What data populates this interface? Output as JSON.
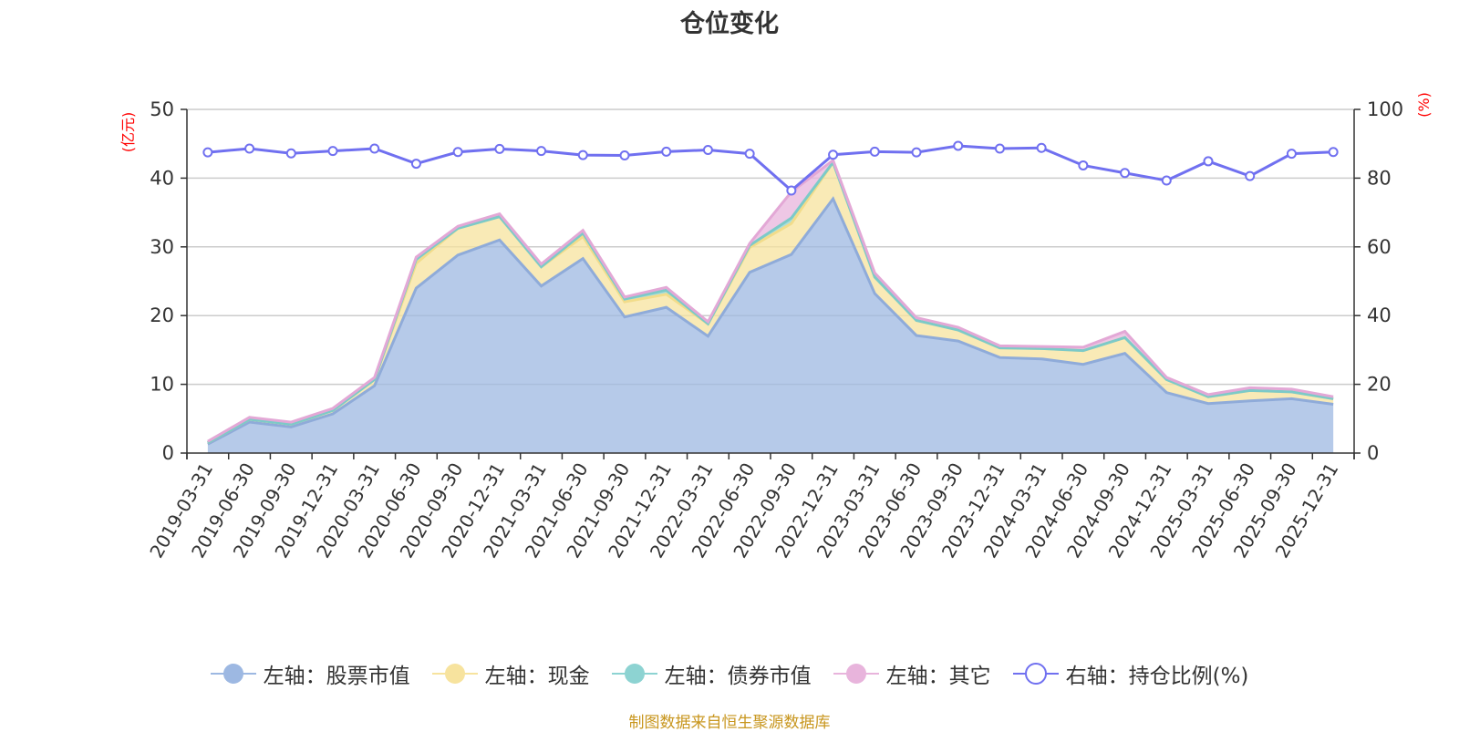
{
  "title": "仓位变化",
  "source": "制图数据来自恒生聚源数据库",
  "colors": {
    "stock": "#9db8e2",
    "cash": "#f7e39e",
    "bond": "#8dd3d2",
    "other": "#e8b4dc",
    "ratio": "#7070f0",
    "unit_label": "#ff0000"
  },
  "legend": [
    {
      "label": "左轴：股票市值",
      "icon": "filled-circle-icon",
      "color": "#9db8e2"
    },
    {
      "label": "左轴：现金",
      "icon": "filled-circle-icon",
      "color": "#f7e39e"
    },
    {
      "label": "左轴：债券市值",
      "icon": "filled-circle-icon",
      "color": "#8dd3d2"
    },
    {
      "label": "左轴：其它",
      "icon": "filled-circle-icon",
      "color": "#e8b4dc"
    },
    {
      "label": "右轴：持仓比例(%)",
      "icon": "hollow-circle-icon",
      "color": "#7070f0"
    }
  ],
  "chart_data": {
    "type": "area",
    "title": "仓位变化",
    "left_axis": {
      "unit": "(亿元)",
      "ylim": [
        0,
        50
      ],
      "ticks": [
        0,
        10,
        20,
        30,
        40,
        50
      ]
    },
    "right_axis": {
      "unit": "(%)",
      "ylim": [
        0,
        100
      ],
      "ticks": [
        0,
        20,
        40,
        60,
        80,
        100
      ]
    },
    "grid": true,
    "legend_position": "bottom",
    "categories": [
      "2019-03-31",
      "2019-06-30",
      "2019-09-30",
      "2019-12-31",
      "2020-03-31",
      "2020-06-30",
      "2020-09-30",
      "2020-12-31",
      "2021-03-31",
      "2021-06-30",
      "2021-09-30",
      "2021-12-31",
      "2022-03-31",
      "2022-06-30",
      "2022-09-30",
      "2022-12-31",
      "2023-03-31",
      "2023-06-30",
      "2023-09-30",
      "2023-12-31",
      "2024-03-31",
      "2024-06-30",
      "2024-09-30",
      "2024-12-31",
      "2025-03-31",
      "2025-06-30",
      "2025-09-30",
      "2025-12-31"
    ],
    "series": [
      {
        "name": "左轴：股票市值",
        "axis": "left",
        "stacked": true,
        "values": [
          1.3,
          4.5,
          3.8,
          5.7,
          9.8,
          24.0,
          28.8,
          31.0,
          24.3,
          28.3,
          19.8,
          21.2,
          17.0,
          26.3,
          28.9,
          37.0,
          23.2,
          17.1,
          16.3,
          13.9,
          13.7,
          12.9,
          14.5,
          8.8,
          7.2,
          7.6,
          7.9,
          7.1
        ]
      },
      {
        "name": "左轴：现金",
        "axis": "left",
        "stacked": true,
        "values": [
          0.2,
          0.4,
          0.4,
          0.5,
          0.9,
          3.6,
          3.9,
          3.4,
          2.8,
          3.2,
          2.2,
          1.9,
          1.8,
          3.6,
          4.5,
          5.3,
          2.4,
          2.2,
          1.6,
          1.4,
          1.5,
          2.0,
          2.3,
          1.9,
          1.0,
          1.5,
          1.0,
          0.8
        ]
      },
      {
        "name": "左轴：债券市值",
        "axis": "left",
        "stacked": true,
        "values": [
          0,
          0,
          0,
          0,
          0,
          0.6,
          0,
          0,
          0,
          0.5,
          0.4,
          0.6,
          0,
          0.3,
          0.8,
          0,
          0,
          0,
          0,
          0,
          0,
          0,
          0,
          0,
          0,
          0,
          0,
          0
        ]
      },
      {
        "name": "左轴：其它",
        "axis": "left",
        "stacked": true,
        "values": [
          0.2,
          0.3,
          0.3,
          0.3,
          0.3,
          0.3,
          0.3,
          0.4,
          0.4,
          0.4,
          0.3,
          0.4,
          0.3,
          0.3,
          3.8,
          0.3,
          0.6,
          0.4,
          0.4,
          0.3,
          0.3,
          0.5,
          0.9,
          0.3,
          0.3,
          0.4,
          0.4,
          0.3
        ]
      },
      {
        "name": "右轴：持仓比例(%)",
        "axis": "right",
        "values": [
          87.5,
          88.6,
          87.2,
          87.9,
          88.6,
          84.2,
          87.6,
          88.5,
          87.9,
          86.7,
          86.6,
          87.7,
          88.2,
          87.1,
          76.4,
          86.8,
          87.7,
          87.5,
          89.4,
          88.6,
          88.8,
          83.7,
          81.5,
          79.3,
          84.9,
          80.6,
          87.1,
          87.6
        ]
      }
    ]
  }
}
